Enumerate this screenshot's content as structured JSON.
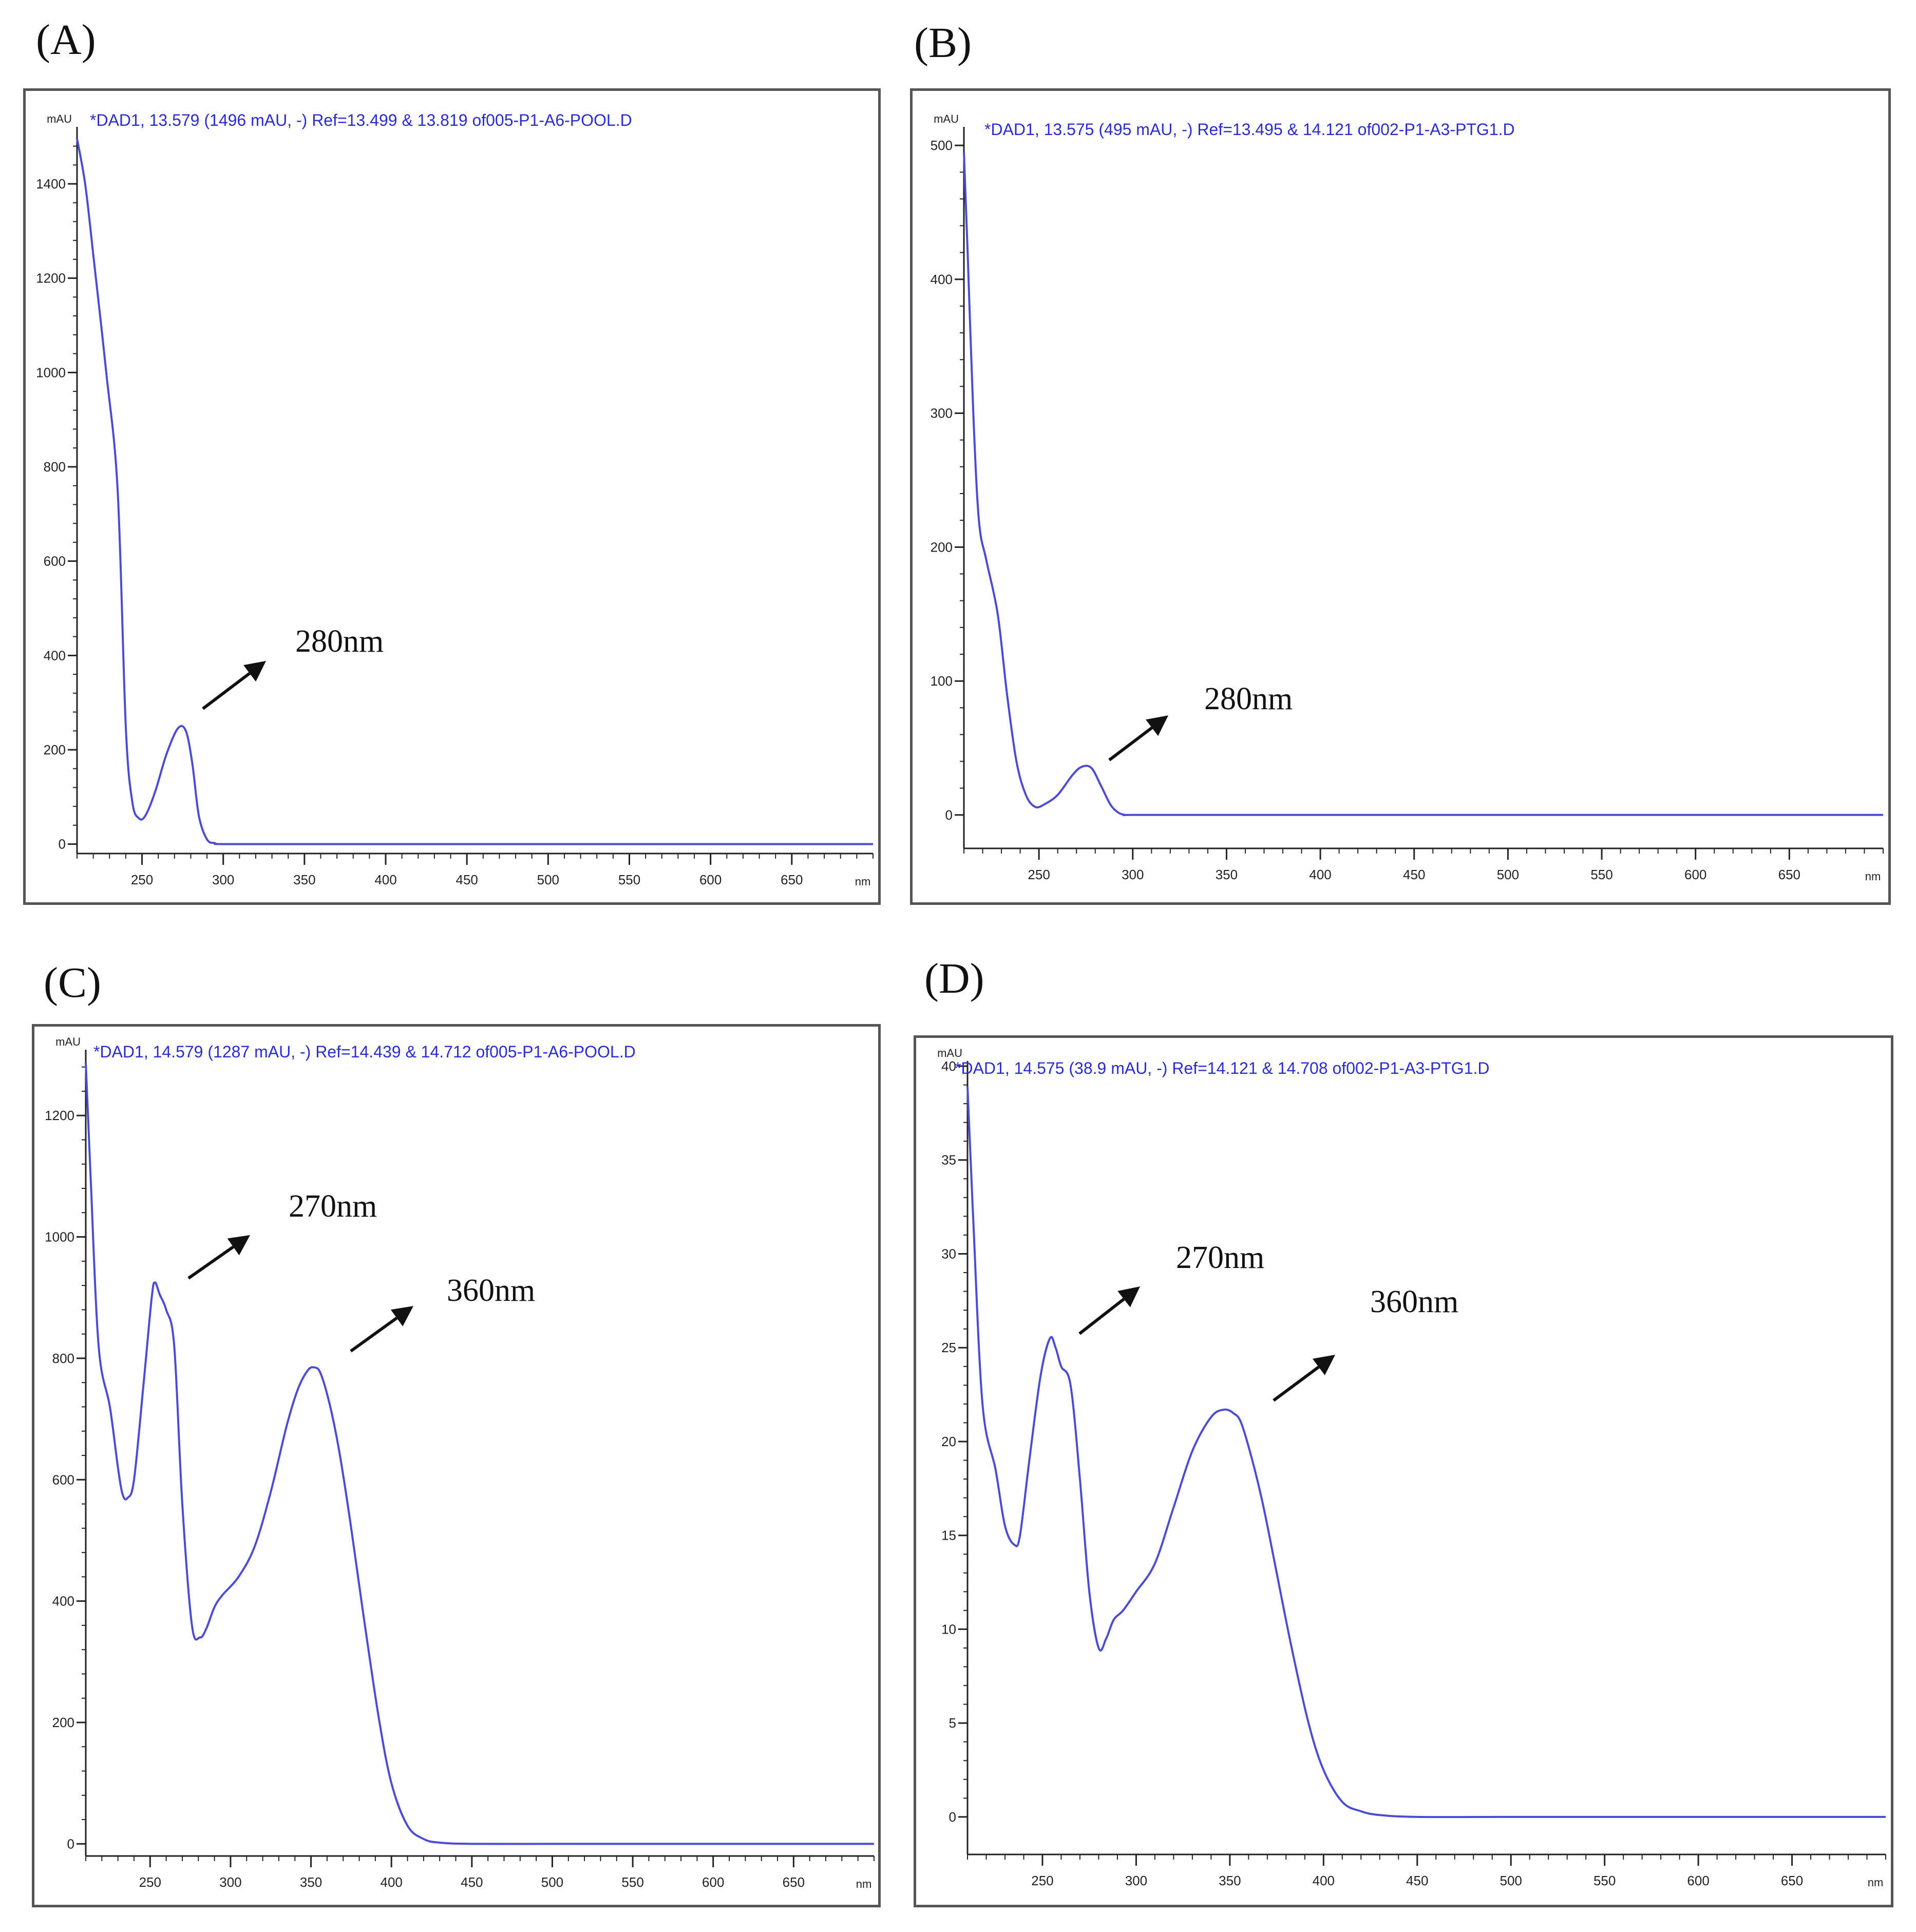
{
  "colors": {
    "curve": "#4b4bd6",
    "header_text": "#2b2bd0",
    "axis": "#222222",
    "frame": "#555555",
    "arrow": "#111111"
  },
  "chart_data": [
    {
      "type": "line",
      "panel_label": "(A)",
      "header": "*DAD1, 13.579 (1496 mAU, -) Ref=13.499 & 13.819 of005-P1-A6-POOL.D",
      "ylabel": "mAU",
      "xlabel": "nm",
      "xlim": [
        210,
        700
      ],
      "ylim": [
        -20,
        1510
      ],
      "xticks": [
        250,
        300,
        350,
        400,
        450,
        500,
        550,
        600,
        650
      ],
      "xtick_labels": [
        "250",
        "300",
        "350",
        "400",
        "450",
        "500",
        "550",
        "600",
        "650"
      ],
      "yticks": [
        0,
        200,
        400,
        600,
        800,
        1000,
        1200,
        1400
      ],
      "ytick_labels": [
        "0",
        "200",
        "400",
        "600",
        "800",
        "1000",
        "1200",
        "1400"
      ],
      "series": [
        {
          "x": [
            210,
            215,
            220,
            228,
            235,
            240,
            244,
            248,
            252,
            258,
            265,
            272,
            277,
            281,
            285,
            290,
            295,
            300,
            350,
            400,
            500,
            600,
            700
          ],
          "y": [
            1496,
            1400,
            1250,
            1000,
            750,
            250,
            90,
            55,
            60,
            110,
            190,
            245,
            240,
            170,
            60,
            10,
            2,
            0,
            0,
            0,
            0,
            0,
            0
          ]
        }
      ],
      "annotations": [
        {
          "text": "280nm",
          "x": 280,
          "y": 245
        }
      ]
    },
    {
      "type": "line",
      "panel_label": "(B)",
      "header": "*DAD1, 13.575 (495 mAU, -) Ref=13.495 & 14.121 of002-P1-A3-PTG1.D",
      "ylabel": "mAU",
      "xlabel": "nm",
      "xlim": [
        210,
        700
      ],
      "ylim": [
        -25,
        510
      ],
      "xticks": [
        250,
        300,
        350,
        400,
        450,
        500,
        550,
        600,
        650
      ],
      "xtick_labels": [
        "250",
        "300",
        "350",
        "400",
        "450",
        "500",
        "550",
        "600",
        "650"
      ],
      "yticks": [
        0,
        100,
        200,
        300,
        400,
        500
      ],
      "ytick_labels": [
        "0",
        "100",
        "200",
        "300",
        "400",
        "500"
      ],
      "series": [
        {
          "x": [
            210,
            212,
            215,
            218,
            222,
            228,
            233,
            238,
            243,
            248,
            253,
            260,
            268,
            273,
            278,
            283,
            288,
            292,
            296,
            300,
            350,
            400,
            500,
            600,
            700
          ],
          "y": [
            495,
            420,
            300,
            220,
            190,
            150,
            90,
            40,
            15,
            6,
            8,
            15,
            30,
            36,
            35,
            22,
            8,
            2,
            0,
            0,
            0,
            0,
            0,
            0,
            0
          ]
        }
      ],
      "annotations": [
        {
          "text": "280nm",
          "x": 280,
          "y": 36
        }
      ]
    },
    {
      "type": "line",
      "panel_label": "(C)",
      "header": "*DAD1, 14.579 (1287 mAU, -) Ref=14.439 & 14.712 of005-P1-A6-POOL.D",
      "ylabel": "mAU",
      "xlabel": "nm",
      "xlim": [
        210,
        700
      ],
      "ylim": [
        -20,
        1300
      ],
      "xticks": [
        250,
        300,
        350,
        400,
        450,
        500,
        550,
        600,
        650
      ],
      "xtick_labels": [
        "250",
        "300",
        "350",
        "400",
        "450",
        "500",
        "550",
        "600",
        "650"
      ],
      "yticks": [
        0,
        200,
        400,
        600,
        800,
        1000,
        1200
      ],
      "ytick_labels": [
        "0",
        "200",
        "400",
        "600",
        "800",
        "1000",
        "1200"
      ],
      "series": [
        {
          "x": [
            210,
            213,
            218,
            225,
            230,
            233,
            236,
            240,
            246,
            251,
            253,
            256,
            260,
            265,
            270,
            276,
            281,
            285,
            290,
            295,
            305,
            315,
            325,
            335,
            342,
            348,
            352,
            356,
            362,
            368,
            375,
            383,
            392,
            400,
            410,
            420,
            430,
            450,
            500,
            550,
            600,
            650,
            700
          ],
          "y": [
            1287,
            1100,
            820,
            720,
            620,
            575,
            570,
            600,
            760,
            900,
            925,
            905,
            880,
            820,
            560,
            360,
            340,
            355,
            390,
            410,
            440,
            490,
            580,
            690,
            750,
            780,
            785,
            775,
            720,
            640,
            520,
            370,
            210,
            100,
            30,
            8,
            2,
            0,
            0,
            0,
            0,
            0,
            0
          ]
        }
      ],
      "annotations": [
        {
          "text": "270nm",
          "x": 255,
          "y": 925
        },
        {
          "text": "360nm",
          "x": 352,
          "y": 785
        }
      ]
    },
    {
      "type": "line",
      "panel_label": "(D)",
      "header": "*DAD1, 14.575 (38.9 mAU, -) Ref=14.121 & 14.708 of002-P1-A3-PTG1.D",
      "ylabel": "mAU",
      "xlabel": "nm",
      "xlim": [
        210,
        700
      ],
      "ylim": [
        -2,
        40
      ],
      "xticks": [
        250,
        300,
        350,
        400,
        450,
        500,
        550,
        600,
        650
      ],
      "xtick_labels": [
        "250",
        "300",
        "350",
        "400",
        "450",
        "500",
        "550",
        "600",
        "650"
      ],
      "yticks": [
        0,
        5,
        10,
        15,
        20,
        25,
        30,
        35,
        40
      ],
      "ytick_labels": [
        "0",
        "5",
        "10",
        "15",
        "20",
        "25",
        "30",
        "35",
        "40"
      ],
      "series": [
        {
          "x": [
            210,
            213,
            218,
            225,
            230,
            235,
            238,
            243,
            249,
            254,
            257,
            260,
            265,
            270,
            275,
            280,
            284,
            288,
            293,
            300,
            310,
            320,
            330,
            340,
            347,
            352,
            356,
            362,
            368,
            375,
            383,
            392,
            400,
            410,
            420,
            430,
            450,
            500,
            550,
            600,
            650,
            700
          ],
          "y": [
            38.9,
            32,
            22,
            18.5,
            15.5,
            14.5,
            15,
            19,
            23.5,
            25.5,
            25,
            24,
            23,
            18,
            12,
            9,
            9.5,
            10.5,
            11,
            12,
            13.5,
            16.5,
            19.5,
            21.3,
            21.7,
            21.5,
            21,
            19,
            16.5,
            13,
            9,
            5,
            2.5,
            0.8,
            0.3,
            0.1,
            0,
            0,
            0,
            0,
            0,
            0
          ]
        }
      ],
      "annotations": [
        {
          "text": "270nm",
          "x": 256,
          "y": 25.5
        },
        {
          "text": "360nm",
          "x": 352,
          "y": 21.7
        }
      ]
    }
  ]
}
